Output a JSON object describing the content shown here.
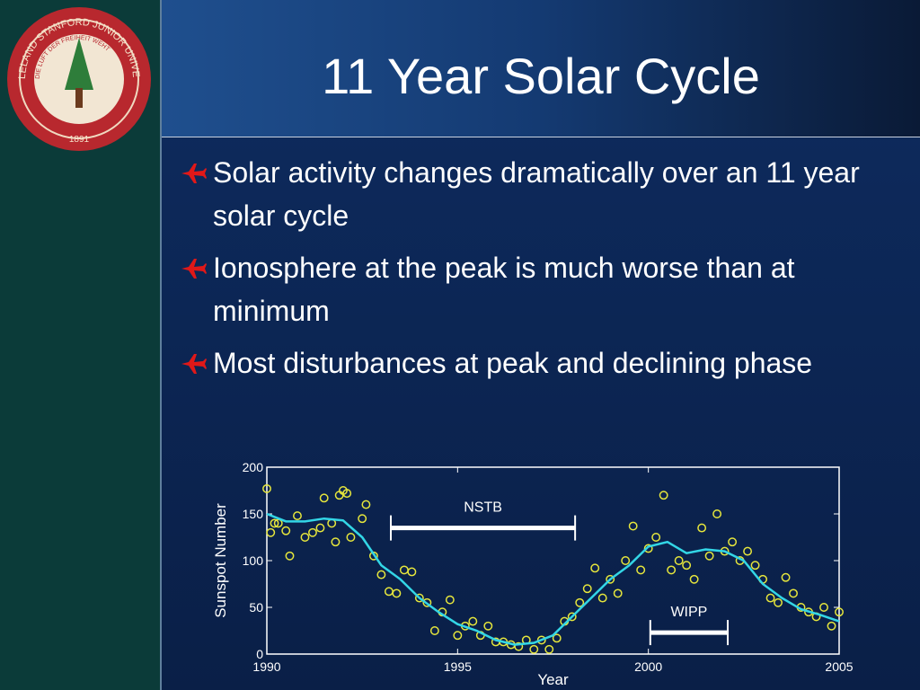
{
  "slide": {
    "title": "11 Year Solar Cycle",
    "bullets": [
      "Solar activity changes dramatically over an 11 year solar cycle",
      "Ionosphere at the peak is much worse than at minimum",
      "Most disturbances at peak and declining phase"
    ]
  },
  "seal": {
    "ring_text": "LELAND STANFORD JUNIOR UNIVERSITY",
    "motto": "DIE LUFT DER FREIHEIT WEHT",
    "year": "1891"
  },
  "chart_data": {
    "type": "scatter",
    "xlabel": "Year",
    "ylabel": "Sunspot Number",
    "xlim": [
      1990,
      2005
    ],
    "ylim": [
      0,
      200
    ],
    "xticks": [
      1990,
      1995,
      2000,
      2005
    ],
    "yticks": [
      0,
      50,
      100,
      150,
      200
    ],
    "series": [
      {
        "type": "scatter",
        "color": "#e6e63c",
        "x": [
          1990.0,
          1990.1,
          1990.2,
          1990.3,
          1990.5,
          1990.6,
          1990.8,
          1991.0,
          1991.2,
          1991.4,
          1991.5,
          1991.7,
          1991.8,
          1991.9,
          1992.0,
          1992.1,
          1992.2,
          1992.5,
          1992.6,
          1992.8,
          1993.0,
          1993.2,
          1993.4,
          1993.6,
          1993.8,
          1994.0,
          1994.2,
          1994.4,
          1994.6,
          1994.8,
          1995.0,
          1995.2,
          1995.4,
          1995.6,
          1995.8,
          1996.0,
          1996.2,
          1996.4,
          1996.6,
          1996.8,
          1997.0,
          1997.2,
          1997.4,
          1997.6,
          1997.8,
          1998.0,
          1998.2,
          1998.4,
          1998.6,
          1998.8,
          1999.0,
          1999.2,
          1999.4,
          1999.6,
          1999.8,
          2000.0,
          2000.2,
          2000.4,
          2000.6,
          2000.8,
          2001.0,
          2001.2,
          2001.4,
          2001.6,
          2001.8,
          2002.0,
          2002.2,
          2002.4,
          2002.6,
          2002.8,
          2003.0,
          2003.2,
          2003.4,
          2003.6,
          2003.8,
          2004.0,
          2004.2,
          2004.4,
          2004.6,
          2004.8,
          2005.0
        ],
        "values": [
          177,
          130,
          140,
          140,
          132,
          105,
          148,
          125,
          130,
          135,
          167,
          140,
          120,
          170,
          175,
          172,
          125,
          145,
          160,
          105,
          85,
          67,
          65,
          90,
          88,
          60,
          55,
          25,
          45,
          58,
          20,
          30,
          35,
          20,
          30,
          13,
          13,
          10,
          8,
          15,
          5,
          15,
          5,
          17,
          35,
          40,
          55,
          70,
          92,
          60,
          80,
          65,
          100,
          137,
          90,
          113,
          125,
          170,
          90,
          100,
          95,
          80,
          135,
          105,
          150,
          110,
          120,
          100,
          110,
          95,
          80,
          60,
          55,
          82,
          65,
          50,
          45,
          40,
          50,
          30,
          45
        ]
      },
      {
        "type": "line",
        "color": "#33d6e6",
        "x": [
          1990.0,
          1990.5,
          1991.0,
          1991.5,
          1992.0,
          1992.5,
          1993.0,
          1993.5,
          1994.0,
          1994.5,
          1995.0,
          1995.5,
          1996.0,
          1996.5,
          1997.0,
          1997.5,
          1998.0,
          1998.5,
          1999.0,
          1999.5,
          2000.0,
          2000.5,
          2001.0,
          2001.5,
          2002.0,
          2002.5,
          2003.0,
          2003.5,
          2004.0,
          2004.5,
          2005.0
        ],
        "values": [
          150,
          142,
          142,
          145,
          143,
          125,
          95,
          80,
          60,
          45,
          32,
          25,
          15,
          10,
          12,
          20,
          40,
          60,
          80,
          95,
          115,
          120,
          108,
          112,
          110,
          100,
          75,
          60,
          48,
          42,
          35
        ]
      }
    ],
    "annotations": [
      {
        "text": "NSTB",
        "x": [
          1993.25,
          1998.08
        ],
        "y": 135
      },
      {
        "text": "WIPP",
        "x": [
          2000.05,
          2002.08
        ],
        "y": 23
      }
    ]
  }
}
